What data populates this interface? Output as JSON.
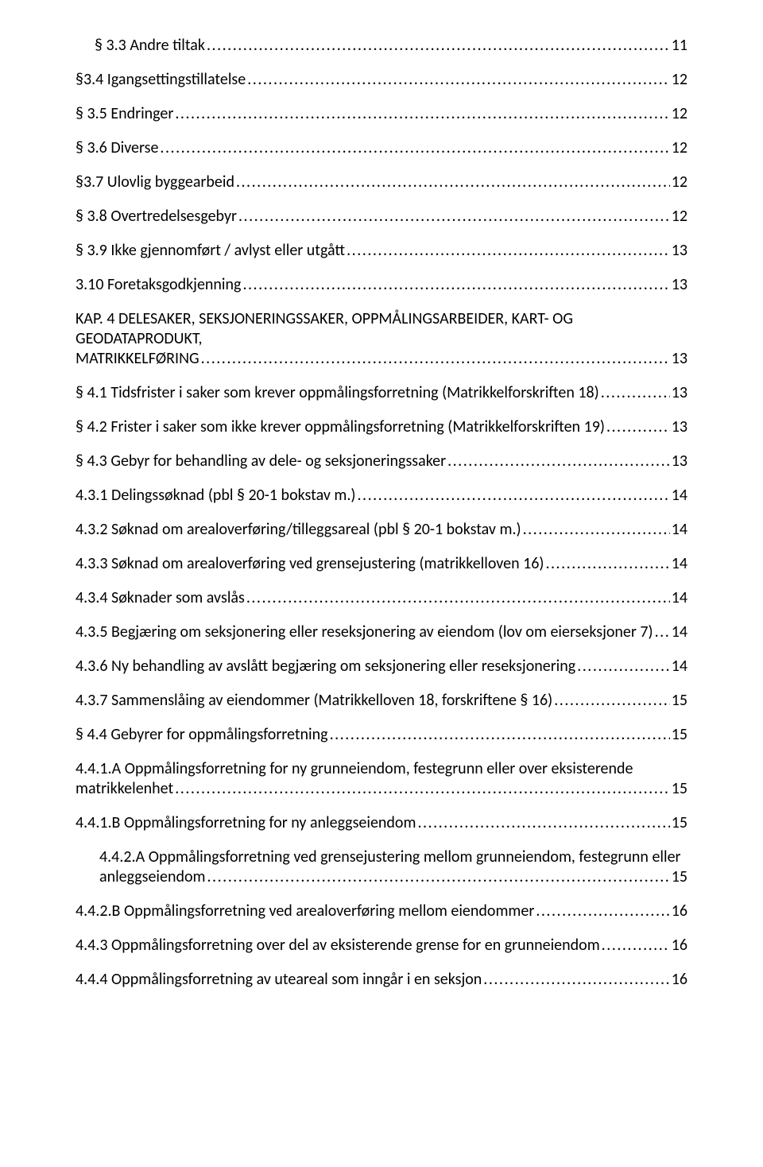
{
  "toc": [
    {
      "indent": 1,
      "title": "§ 3.3 Andre tiltak",
      "page": "11",
      "wrap": false
    },
    {
      "indent": 0,
      "title": "§3.4 Igangsettingstillatelse",
      "page": "12",
      "wrap": false
    },
    {
      "indent": 0,
      "title": "§ 3.5 Endringer",
      "page": "12",
      "wrap": false
    },
    {
      "indent": 0,
      "title": "§ 3.6 Diverse",
      "page": "12",
      "wrap": false
    },
    {
      "indent": 0,
      "title": "§3.7 Ulovlig byggearbeid",
      "page": "12",
      "wrap": false
    },
    {
      "indent": 0,
      "title": "§ 3.8 Overtredelsesgebyr",
      "page": "12",
      "wrap": false
    },
    {
      "indent": 0,
      "title": "§ 3.9 Ikke gjennomført / avlyst eller utgått",
      "page": "13",
      "wrap": false
    },
    {
      "indent": 0,
      "title": "3.10 Foretaksgodkjenning",
      "page": "13",
      "wrap": false
    },
    {
      "indent": 0,
      "title_pre": "KAP. 4 DELESAKER, SEKSJONERINGSSAKER, OPPMÅLINGSARBEIDER, KART- OG GEODATAPRODUKT,",
      "title_tail": "MATRIKKELFØRING",
      "page": "13",
      "wrap": true
    },
    {
      "indent": 0,
      "title": "§ 4.1 Tidsfrister i saker som krever oppmålingsforretning (Matrikkelforskriften 18)",
      "page": "13",
      "wrap": false
    },
    {
      "indent": 0,
      "title": "§ 4.2 Frister i saker som ikke krever oppmålingsforretning (Matrikkelforskriften 19)",
      "page": "13",
      "wrap": false
    },
    {
      "indent": 0,
      "title": "§ 4.3 Gebyr for behandling av dele- og seksjoneringssaker",
      "page": "13",
      "wrap": false
    },
    {
      "indent": 0,
      "title": "4.3.1 Delingssøknad (pbl § 20-1 bokstav m.)",
      "page": "14",
      "wrap": false
    },
    {
      "indent": 0,
      "title": "4.3.2 Søknad om arealoverføring/tilleggsareal (pbl § 20-1 bokstav m.)",
      "page": "14",
      "wrap": false
    },
    {
      "indent": 0,
      "title": "4.3.3 Søknad om arealoverføring ved grensejustering (matrikkelloven 16)",
      "page": "14",
      "wrap": false
    },
    {
      "indent": 0,
      "title": "4.3.4 Søknader som avslås",
      "page": "14",
      "wrap": false
    },
    {
      "indent": 0,
      "title": "4.3.5 Begjæring om seksjonering eller reseksjonering av eiendom (lov om eierseksjoner 7)",
      "page": "14",
      "wrap": false,
      "italic_tail": true
    },
    {
      "indent": 0,
      "title": "4.3.6 Ny behandling av avslått begjæring om seksjonering eller reseksjonering",
      "page": "14",
      "wrap": false
    },
    {
      "indent": 0,
      "title": "4.3.7 Sammenslåing av eiendommer (Matrikkelloven 18, forskriftene § 16)",
      "page": "15",
      "wrap": false
    },
    {
      "indent": 0,
      "title": "§ 4.4 Gebyrer for oppmålingsforretning",
      "page": "15",
      "wrap": false
    },
    {
      "indent": 0,
      "title_pre": "4.4.1.A  Oppmålingsforretning for ny grunneiendom, festegrunn eller over eksisterende",
      "title_tail": "matrikkelenhet",
      "page": "15",
      "wrap": true
    },
    {
      "indent": 0,
      "title": "4.4.1.B  Oppmålingsforretning for ny anleggseiendom",
      "page": "15",
      "wrap": false
    },
    {
      "indent": 2,
      "title_pre": "4.4.2.A  Oppmålingsforretning ved grensejustering mellom grunneiendom, festegrunn eller",
      "title_tail": "anleggseiendom",
      "page": "15",
      "wrap": true
    },
    {
      "indent": 0,
      "title": "4.4.2.B  Oppmålingsforretning ved arealoverføring mellom eiendommer",
      "page": "16",
      "wrap": false
    },
    {
      "indent": 0,
      "title": "4.4.3 Oppmålingsforretning over del av eksisterende grense for en grunneiendom",
      "page": "16",
      "wrap": false
    },
    {
      "indent": 0,
      "title": "4.4.4 Oppmålingsforretning av uteareal som inngår i en seksjon",
      "page": "16",
      "wrap": false
    }
  ]
}
